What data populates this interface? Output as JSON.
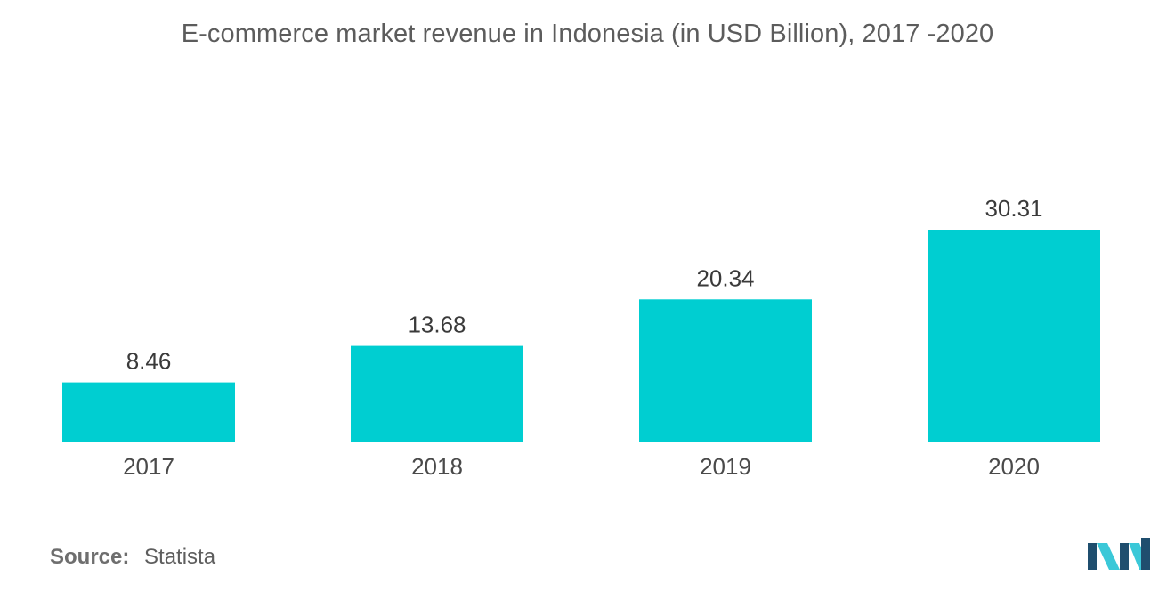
{
  "chart_data": {
    "type": "bar",
    "title": "E-commerce market revenue in Indonesia (in USD Billion), 2017 -2020",
    "categories": [
      "2017",
      "2018",
      "2019",
      "2020"
    ],
    "values": [
      8.46,
      13.68,
      20.34,
      30.31
    ],
    "data_labels": [
      "8.46",
      "13.68",
      "20.34",
      "30.31"
    ],
    "ylim": [
      0,
      30.31
    ],
    "grid": false,
    "legend": "none",
    "bar_color": "#00ced1"
  },
  "footer": {
    "source_label": "Source:",
    "source_value": "Statista"
  },
  "logo": {
    "icon": "mordor-intelligence-logo-icon",
    "color_dark": "#1f4e6e",
    "color_light": "#3bc8d8"
  }
}
